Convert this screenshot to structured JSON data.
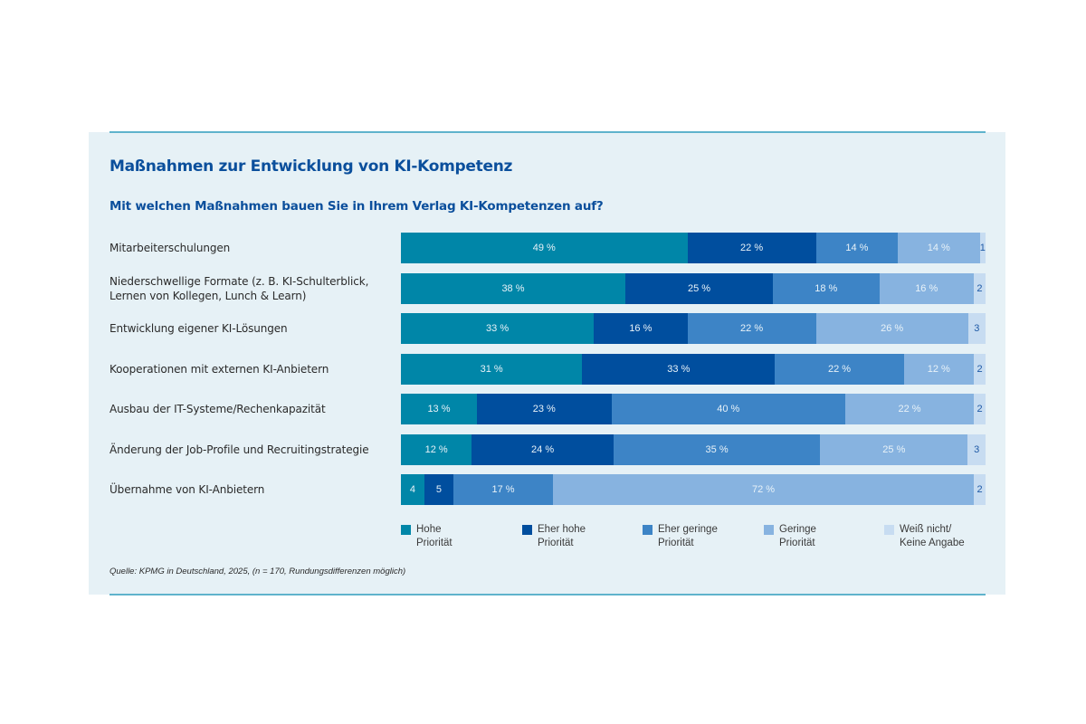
{
  "chart_data": {
    "type": "bar",
    "orientation": "horizontal",
    "stacked": true,
    "title": "Maßnahmen zur Entwicklung von KI-Kompetenz",
    "subtitle": "Mit welchen Maßnahmen bauen Sie in Ihrem Verlag KI-Kompetenzen auf?",
    "xlabel": "",
    "ylabel": "",
    "xlim": [
      0,
      100
    ],
    "unit": "%",
    "categories": [
      "Mitarbeiterschulungen",
      "Niederschwellige Formate (z. B. KI-Schulterblick,\nLernen von Kollegen, Lunch & Learn)",
      "Entwicklung eigener KI-Lösungen",
      "Kooperationen mit externen KI-Anbietern",
      "Ausbau der IT-Systeme/Rechenkapazität",
      "Änderung der Job-Profile und Recruitingstrategie",
      "Übernahme von KI-Anbietern"
    ],
    "series": [
      {
        "name": "Hohe\nPriorität",
        "color": "#0086a8",
        "values": [
          49,
          38,
          33,
          31,
          13,
          12,
          4
        ],
        "labels": [
          "49 %",
          "38 %",
          "33 %",
          "31 %",
          "13 %",
          "12 %",
          "4"
        ]
      },
      {
        "name": "Eher hohe\nPriorität",
        "color": "#004e9e",
        "values": [
          22,
          25,
          16,
          33,
          23,
          24,
          5
        ],
        "labels": [
          "22 %",
          "25 %",
          "16 %",
          "33 %",
          "23 %",
          "24 %",
          "5"
        ]
      },
      {
        "name": "Eher geringe\nPriorität",
        "color": "#3d84c6",
        "values": [
          14,
          18,
          22,
          22,
          40,
          35,
          17
        ],
        "labels": [
          "14 %",
          "18 %",
          "22 %",
          "22 %",
          "40 %",
          "35 %",
          "17 %"
        ]
      },
      {
        "name": "Geringe\nPriorität",
        "color": "#87b3e0",
        "values": [
          14,
          16,
          26,
          12,
          22,
          25,
          72
        ],
        "labels": [
          "14 %",
          "16 %",
          "26 %",
          "12 %",
          "22 %",
          "25 %",
          "72 %"
        ]
      },
      {
        "name": "Weiß nicht/\nKeine Angabe",
        "color": "#c7dcf1",
        "values": [
          1,
          2,
          3,
          2,
          2,
          3,
          2
        ],
        "labels": [
          "1",
          "2",
          "3",
          "2",
          "2",
          "3",
          "2"
        ]
      }
    ],
    "legend_position": "bottom",
    "grid": false,
    "source": "Quelle: KPMG in Deutschland, 2025, (n = 170, Rundungsdifferenzen möglich)"
  }
}
